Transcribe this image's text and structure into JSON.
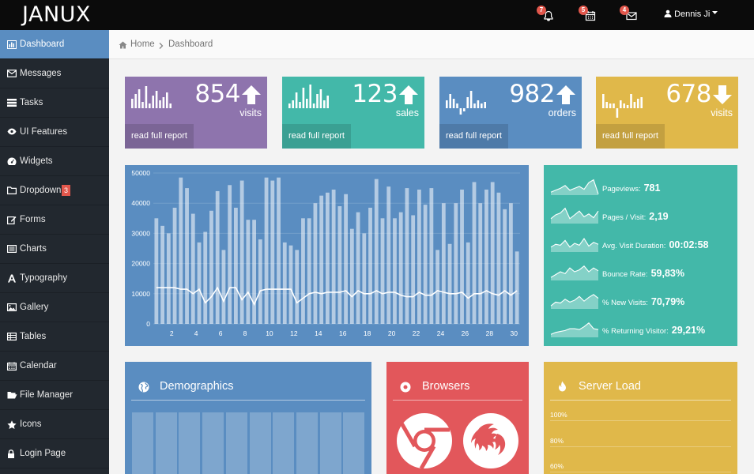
{
  "brand": "JANUX",
  "topbar": {
    "notifications": {
      "badge": "7",
      "icon": "bell-icon"
    },
    "calendar": {
      "badge": "5",
      "icon": "calendar-icon"
    },
    "messages": {
      "badge": "4",
      "icon": "envelope-icon"
    },
    "user": "Dennis Ji"
  },
  "sidebar": {
    "items": [
      {
        "label": "Dashboard",
        "icon": "bar-chart-icon",
        "active": true
      },
      {
        "label": "Messages",
        "icon": "envelope-icon"
      },
      {
        "label": "Tasks",
        "icon": "tasks-icon"
      },
      {
        "label": "UI Features",
        "icon": "eye-icon"
      },
      {
        "label": "Widgets",
        "icon": "dashboard-icon"
      },
      {
        "label": "Dropdown",
        "icon": "folder-icon",
        "badge": "3"
      },
      {
        "label": "Forms",
        "icon": "edit-icon"
      },
      {
        "label": "Charts",
        "icon": "list-alt-icon"
      },
      {
        "label": "Typography",
        "icon": "font-icon"
      },
      {
        "label": "Gallery",
        "icon": "picture-icon"
      },
      {
        "label": "Tables",
        "icon": "table-icon"
      },
      {
        "label": "Calendar",
        "icon": "calendar-icon"
      },
      {
        "label": "File Manager",
        "icon": "folder-open-icon"
      },
      {
        "label": "Icons",
        "icon": "star-icon"
      },
      {
        "label": "Login Page",
        "icon": "lock-icon"
      }
    ]
  },
  "breadcrumb": {
    "home": "Home",
    "current": "Dashboard"
  },
  "stats": [
    {
      "value": "854",
      "label": "visits",
      "link": "read full report",
      "color": "#8e74ad",
      "trend": "up",
      "bars": [
        6,
        9,
        12,
        4,
        14,
        3,
        8,
        11,
        5,
        7,
        10,
        3
      ]
    },
    {
      "value": "123",
      "label": "sales",
      "link": "read full report",
      "color": "#43b8a9",
      "trend": "up",
      "bars": [
        3,
        5,
        10,
        4,
        13,
        6,
        15,
        3,
        9,
        12,
        5,
        8
      ]
    },
    {
      "value": "982",
      "label": "orders",
      "link": "read full report",
      "color": "#5a8dc1",
      "trend": "up",
      "bars": [
        5,
        9,
        6,
        3,
        -4,
        -2,
        7,
        11,
        3,
        5,
        3,
        4
      ]
    },
    {
      "value": "678",
      "label": "visits",
      "link": "read full report",
      "color": "#e0b84a",
      "trend": "down",
      "bars": [
        9,
        4,
        3,
        3,
        -6,
        5,
        3,
        2,
        9,
        4,
        6,
        7
      ]
    }
  ],
  "chart_data": {
    "type": "bar",
    "title": "",
    "x": [
      1,
      2,
      3,
      4,
      5,
      6,
      7,
      8,
      9,
      10,
      11,
      12,
      13,
      14,
      15,
      16,
      17,
      18,
      19,
      20,
      21,
      22,
      23,
      24,
      25,
      26,
      27,
      28,
      29,
      30,
      31,
      32,
      33,
      34,
      35,
      36,
      37,
      38,
      39,
      40,
      41,
      42,
      43,
      44,
      45,
      46,
      47,
      48,
      49,
      50,
      51,
      52,
      53,
      54,
      55,
      56,
      57,
      58,
      59,
      60
    ],
    "xticks": [
      "2",
      "4",
      "6",
      "8",
      "10",
      "12",
      "14",
      "16",
      "18",
      "20",
      "22",
      "24",
      "26",
      "28",
      "30"
    ],
    "yticks": [
      "0",
      "10000",
      "20000",
      "30000",
      "40000",
      "50000"
    ],
    "ylim": [
      0,
      50000
    ],
    "series": [
      {
        "type": "bar",
        "values": [
          35000,
          32500,
          30000,
          38500,
          48500,
          45000,
          36500,
          27000,
          30500,
          37500,
          44000,
          24500,
          46000,
          38500,
          47500,
          34500,
          34500,
          28000,
          48500,
          47500,
          48500,
          27000,
          26000,
          24500,
          35000,
          35000,
          40000,
          42500,
          43500,
          44500,
          39000,
          43000,
          31500,
          37000,
          30000,
          38500,
          48000,
          35000,
          45500,
          35000,
          37000,
          45000,
          36000,
          44500,
          39500,
          45000,
          24500,
          40000,
          26500,
          40000,
          44500,
          27000,
          47000,
          40000,
          44500,
          47000,
          43500,
          38000,
          40000,
          24000
        ]
      },
      {
        "type": "line",
        "values": [
          12000,
          12000,
          12000,
          12000,
          11500,
          11500,
          10000,
          11500,
          7000,
          9000,
          12000,
          7500,
          12000,
          12000,
          8000,
          10500,
          6500,
          11000,
          11500,
          11500,
          11500,
          11500,
          11500,
          7000,
          8500,
          10000,
          10500,
          10000,
          10500,
          10500,
          10500,
          11000,
          9000,
          11000,
          10000,
          10000,
          11000,
          10000,
          10500,
          10500,
          9500,
          9000,
          9000,
          10500,
          9500,
          9500,
          11000,
          10500,
          10000,
          10000,
          10500,
          8500,
          10000,
          10000,
          11000,
          10000,
          9500,
          11000,
          9500,
          11000
        ]
      }
    ]
  },
  "kpis": [
    {
      "label": "Pageviews:",
      "value": "781"
    },
    {
      "label": "Pages / Visit:",
      "value": "2,19"
    },
    {
      "label": "Avg. Visit Duration:",
      "value": "00:02:58"
    },
    {
      "label": "Bounce Rate:",
      "value": "59,83%"
    },
    {
      "label": "% New Visits:",
      "value": "70,79%"
    },
    {
      "label": "% Returning Visitor:",
      "value": "29,21%"
    }
  ],
  "panels": {
    "demographics": {
      "title": "Demographics",
      "color": "#5a8dc1",
      "icon": "globe-icon"
    },
    "browsers": {
      "title": "Browsers",
      "color": "#e2575b",
      "icon": "chrome-icon"
    },
    "server": {
      "title": "Server Load",
      "color": "#e0b84a",
      "icon": "fire-icon",
      "yticks": [
        "100%",
        "80%",
        "60%"
      ]
    }
  }
}
